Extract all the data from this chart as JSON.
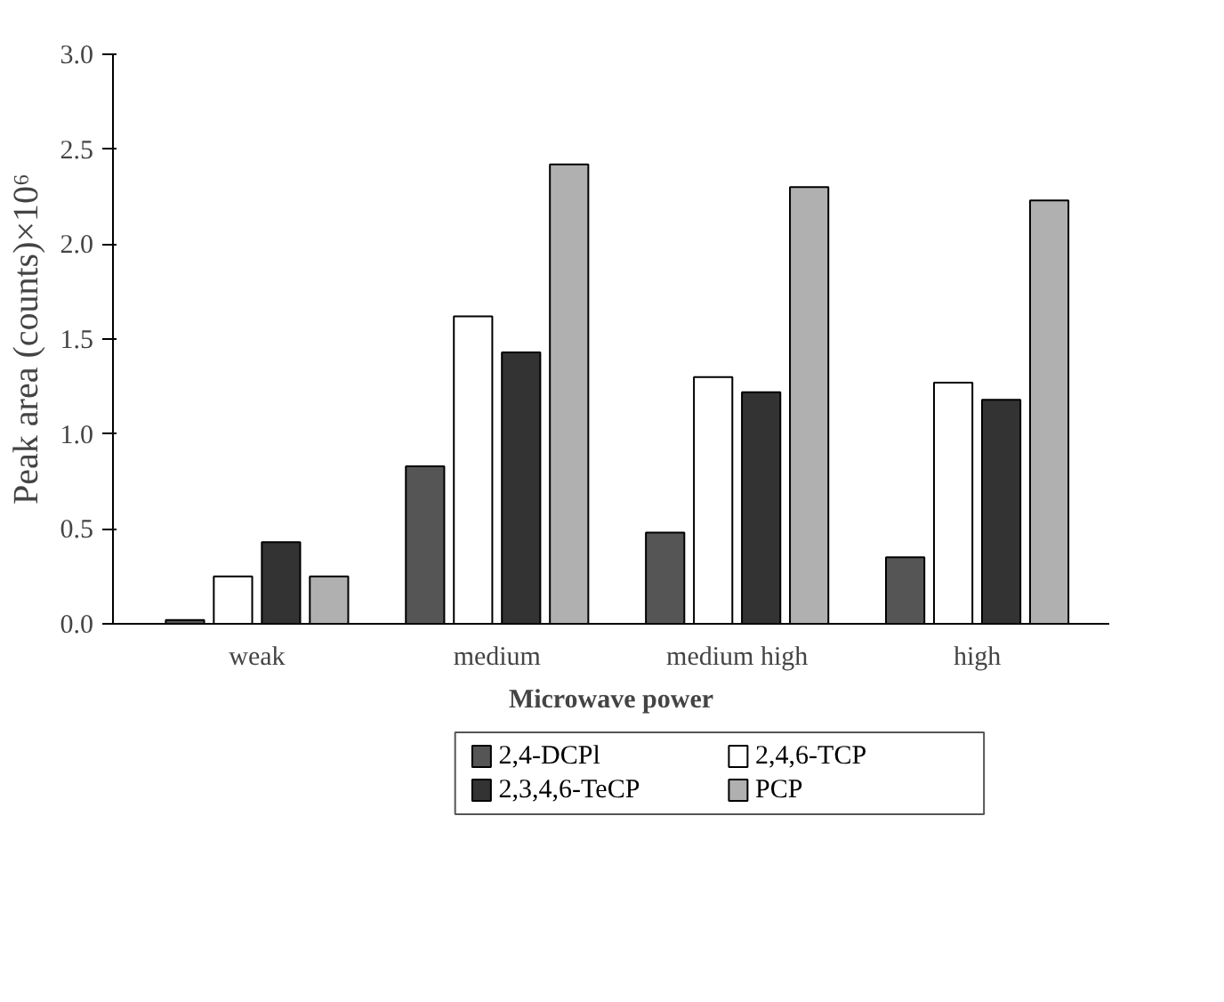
{
  "chart_data": {
    "type": "bar",
    "xlabel": "Microwave power",
    "ylabel": "Peak area (counts)×10⁶",
    "categories": [
      "weak",
      "medium",
      "medium high",
      "high"
    ],
    "series": [
      {
        "name": "2,4-DCPl",
        "color": "#555555",
        "values": [
          0.02,
          0.83,
          0.48,
          0.35
        ]
      },
      {
        "name": "2,4,6-TCP",
        "color": "#ffffff",
        "values": [
          0.25,
          1.62,
          1.3,
          1.27
        ]
      },
      {
        "name": "2,3,4,6-TeCP",
        "color": "#333333",
        "values": [
          0.43,
          1.43,
          1.22,
          1.18
        ]
      },
      {
        "name": "PCP",
        "color": "#b0b0b0",
        "values": [
          0.25,
          2.42,
          2.3,
          2.23
        ]
      }
    ],
    "ylim": [
      0,
      3
    ],
    "yticks": [
      {
        "value": 0,
        "label": "0.0"
      },
      {
        "value": 0.5,
        "label": "0.5"
      },
      {
        "value": 1,
        "label": "1.0"
      },
      {
        "value": 1.5,
        "label": "1.5"
      },
      {
        "value": 2,
        "label": "2.0"
      },
      {
        "value": 2.5,
        "label": "2.5"
      },
      {
        "value": 3,
        "label": "3.0"
      }
    ],
    "grid": false,
    "legend": "bottom"
  }
}
